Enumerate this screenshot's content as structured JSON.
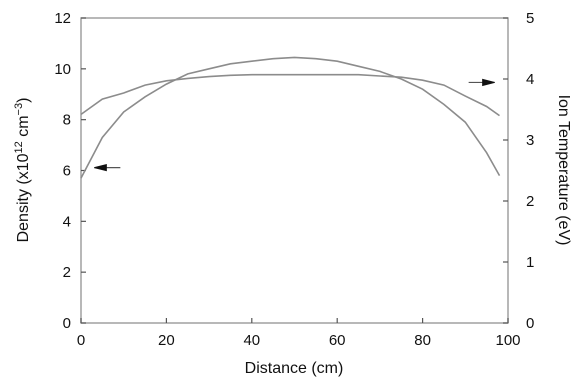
{
  "chart_data": {
    "type": "line",
    "title": "",
    "xlabel": "Distance (cm)",
    "ylabel_left": {
      "prefix": "Density (x10",
      "sup1": "12",
      "mid": " cm",
      "sup2": "−3",
      "suffix": ")"
    },
    "ylabel_right": "Ion Temperature (eV)",
    "xlim": [
      0,
      100
    ],
    "ylim_left": [
      0,
      12
    ],
    "ylim_right": [
      0,
      5
    ],
    "x_ticks": [
      0,
      20,
      40,
      60,
      80,
      100
    ],
    "y_ticks_left": [
      0,
      2,
      4,
      6,
      8,
      10,
      12
    ],
    "y_ticks_right": [
      0,
      1,
      2,
      3,
      4,
      5
    ],
    "grid": false,
    "series": [
      {
        "axis": "left",
        "arrow": "left",
        "x": [
          0,
          5,
          10,
          15,
          20,
          25,
          30,
          35,
          40,
          45,
          50,
          55,
          60,
          65,
          70,
          75,
          80,
          85,
          90,
          95,
          98
        ],
        "y": [
          5.7,
          7.3,
          8.3,
          8.9,
          9.4,
          9.8,
          10.0,
          10.2,
          10.3,
          10.4,
          10.45,
          10.4,
          10.3,
          10.1,
          9.9,
          9.6,
          9.2,
          8.6,
          7.9,
          6.7,
          5.8
        ]
      },
      {
        "axis": "right",
        "arrow": "right",
        "x": [
          0,
          5,
          10,
          15,
          20,
          25,
          30,
          35,
          40,
          45,
          50,
          55,
          60,
          65,
          70,
          75,
          80,
          85,
          90,
          95,
          98
        ],
        "y": [
          3.42,
          3.67,
          3.77,
          3.9,
          3.97,
          4.01,
          4.04,
          4.06,
          4.07,
          4.07,
          4.07,
          4.07,
          4.07,
          4.07,
          4.05,
          4.03,
          3.98,
          3.9,
          3.72,
          3.55,
          3.4
        ]
      }
    ]
  }
}
